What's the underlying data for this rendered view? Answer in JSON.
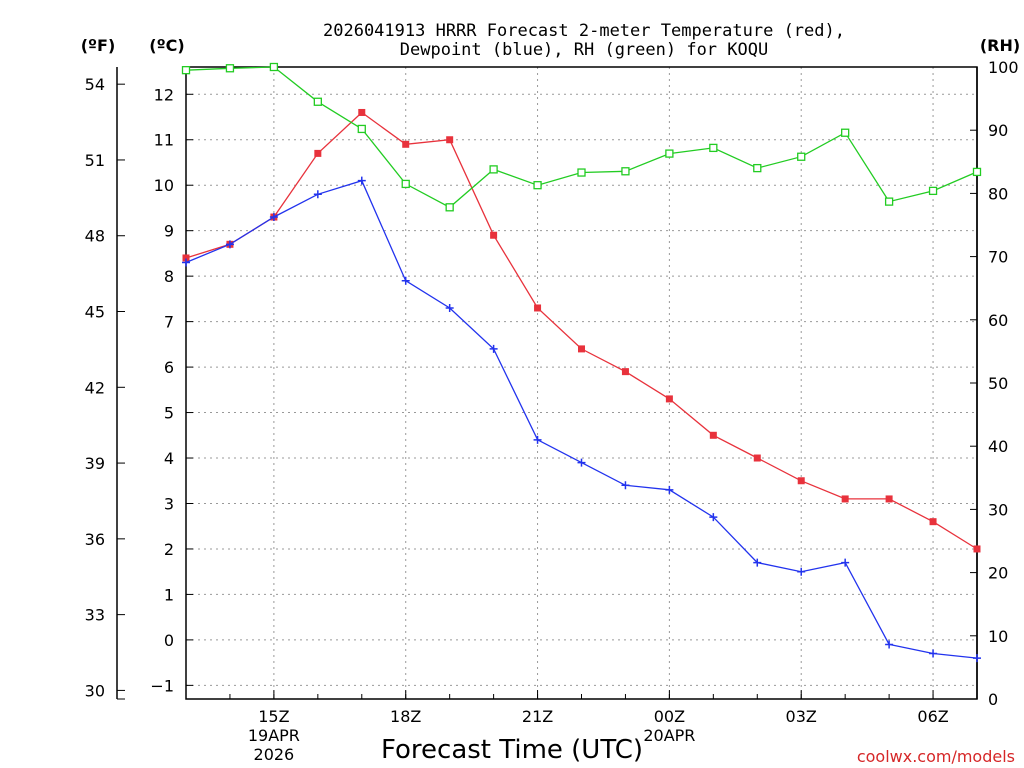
{
  "chart_data": {
    "type": "line",
    "title_line1": "2026041913 HRRR Forecast 2-meter Temperature (red),",
    "title_line2": "Dewpoint (blue), RH (green) for KOQU",
    "xlabel": "Forecast Time (UTC)",
    "credit": "coolwx.com/models",
    "left_outer_unit": "(ºF)",
    "left_inner_unit": "(ºC)",
    "right_unit": "(RH)",
    "x_hours": [
      13,
      14,
      15,
      16,
      17,
      18,
      19,
      20,
      21,
      22,
      23,
      24,
      25,
      26,
      27,
      28,
      29,
      30,
      31
    ],
    "x_ticks": [
      {
        "hour": 15,
        "label": "15Z",
        "date": "19APR",
        "year": "2026"
      },
      {
        "hour": 18,
        "label": "18Z"
      },
      {
        "hour": 21,
        "label": "21Z"
      },
      {
        "hour": 24,
        "label": "00Z",
        "date": "20APR"
      },
      {
        "hour": 27,
        "label": "03Z"
      },
      {
        "hour": 30,
        "label": "06Z"
      }
    ],
    "xlim": [
      13,
      31
    ],
    "celsius_ticks": [
      -1,
      0,
      1,
      2,
      3,
      4,
      5,
      6,
      7,
      8,
      9,
      10,
      11,
      12
    ],
    "ylim_celsius": [
      -1.3,
      12.6
    ],
    "fahrenheit_ticks": [
      30,
      33,
      36,
      39,
      42,
      45,
      48,
      51,
      54
    ],
    "rh_ticks": [
      0,
      10,
      20,
      30,
      40,
      50,
      60,
      70,
      80,
      90,
      100
    ],
    "series": [
      {
        "name": "Temperature",
        "color": "#e8323c",
        "marker": "filled-square",
        "axis": "celsius",
        "values": [
          8.4,
          8.7,
          9.3,
          10.7,
          11.6,
          10.9,
          11.0,
          8.9,
          7.3,
          6.4,
          5.9,
          5.3,
          4.5,
          4.0,
          3.5,
          3.1,
          3.1,
          2.6,
          2.0
        ]
      },
      {
        "name": "Dewpoint",
        "color": "#2233ee",
        "marker": "plus",
        "axis": "celsius",
        "values": [
          8.3,
          8.7,
          9.3,
          9.8,
          10.1,
          7.9,
          7.3,
          6.4,
          4.4,
          3.9,
          3.4,
          3.3,
          2.7,
          1.7,
          1.5,
          1.7,
          -0.1,
          -0.3,
          -0.4
        ]
      },
      {
        "name": "RH",
        "color": "#22cc22",
        "marker": "open-square",
        "axis": "rh",
        "values": [
          99.5,
          99.8,
          100,
          94.5,
          90.2,
          81.5,
          77.8,
          83.8,
          81.3,
          83.3,
          83.5,
          86.3,
          87.2,
          84.0,
          85.8,
          89.6,
          78.7,
          80.4,
          83.4
        ]
      }
    ]
  }
}
